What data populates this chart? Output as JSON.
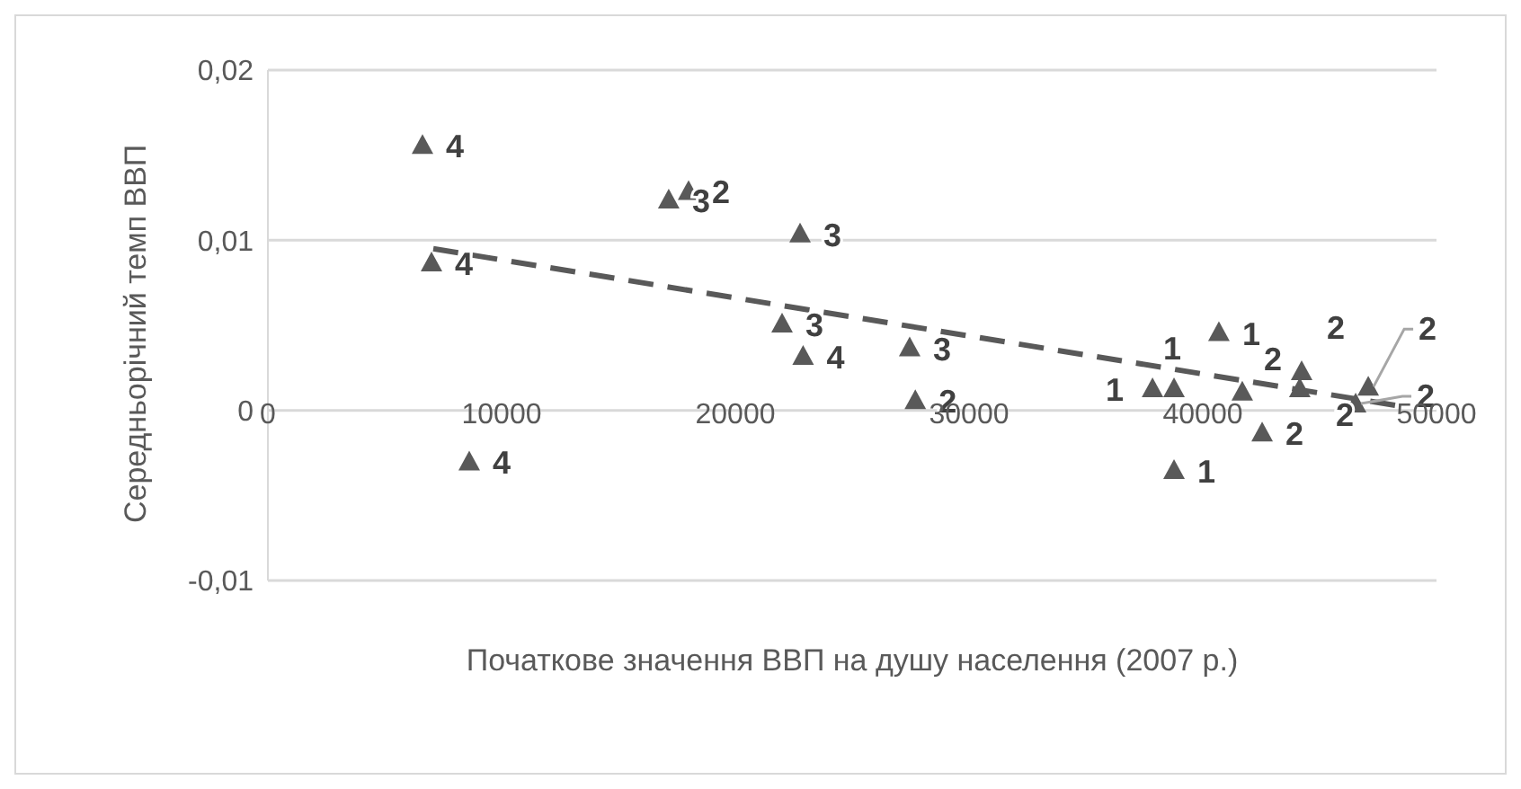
{
  "chart_data": {
    "type": "scatter",
    "xlabel": "Початкове значення ВВП на душу населення  (2007 р.)",
    "ylabel": "Середньорічний темп ВВП",
    "xlim": [
      0,
      50000
    ],
    "xticks": [
      0,
      10000,
      20000,
      30000,
      40000,
      50000
    ],
    "ylim": [
      -0.01,
      0.02
    ],
    "yticks": [
      {
        "value": -0.01,
        "label": "-0,01"
      },
      {
        "value": 0,
        "label": "0"
      },
      {
        "value": 0.01,
        "label": "0,01"
      },
      {
        "value": 0.02,
        "label": "0,02"
      }
    ],
    "grid": "y",
    "legend": false,
    "series": [
      {
        "color": "#595959",
        "marker": "triangle",
        "x": [
          6615,
          7000,
          8615,
          17150,
          18000,
          22770,
          22000,
          22900,
          27460,
          27700,
          37850,
          38770,
          40690,
          41690,
          42540,
          38770,
          44230,
          44150,
          46540,
          47080
        ],
        "values": [
          0.0156,
          0.0087,
          -0.003,
          0.0124,
          0.0129,
          0.0104,
          0.0051,
          0.0032,
          0.0037,
          0.0006,
          0.0013,
          0.0013,
          0.0046,
          0.0011,
          -0.0013,
          -0.0035,
          0.0023,
          0.0013,
          0.0004,
          0.0014
        ]
      },
      {
        "type": "line",
        "color": "#595959",
        "line_style": "dashed",
        "marker": "none",
        "x": [
          7077,
          48230
        ],
        "values": [
          0.0095,
          0.0003
        ]
      }
    ],
    "annotations": [
      {
        "text": "4",
        "x": 6615,
        "y": 0.0156
      },
      {
        "text": "4",
        "x": 7000,
        "y": 0.0087
      },
      {
        "text": "4",
        "x": 8615,
        "y": -0.003
      },
      {
        "text": "3",
        "x": 17150,
        "y": 0.0124
      },
      {
        "text": "2",
        "x": 18000,
        "y": 0.0129
      },
      {
        "text": "3",
        "x": 22770,
        "y": 0.0104
      },
      {
        "text": "3",
        "x": 22000,
        "y": 0.0051
      },
      {
        "text": "4",
        "x": 22900,
        "y": 0.0032
      },
      {
        "text": "3",
        "x": 27460,
        "y": 0.0037
      },
      {
        "text": "2",
        "x": 27700,
        "y": 0.0006
      },
      {
        "text": "1",
        "x": 37850,
        "y": 0.0013
      },
      {
        "text": "1",
        "x": 38770,
        "y": 0.0013
      },
      {
        "text": "1",
        "x": 40690,
        "y": 0.0046
      },
      {
        "text": "2",
        "x": 41690,
        "y": 0.0011
      },
      {
        "text": "2",
        "x": 42540,
        "y": -0.0013
      },
      {
        "text": "1",
        "x": 38770,
        "y": -0.0035
      },
      {
        "text": "2",
        "x": 44230,
        "y": 0.0023
      },
      {
        "text": "2",
        "x": 44150,
        "y": 0.0013
      },
      {
        "text": "2",
        "x": 46540,
        "y": 0.0004
      },
      {
        "text": "2",
        "x": 47080,
        "y": 0.0014
      }
    ]
  }
}
